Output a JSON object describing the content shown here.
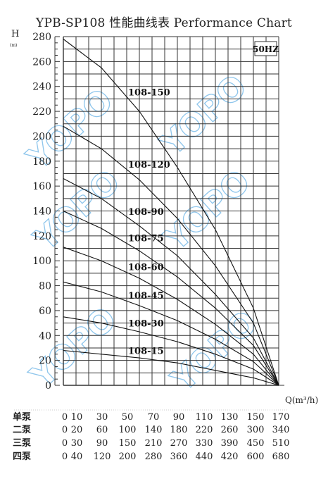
{
  "chart_data": {
    "type": "line",
    "title": "YPB-SP108 性能曲线表 Performance Chart",
    "ylabel": "H",
    "ylabel_unit": "(m)",
    "xlabel": "Q(m³/h)",
    "frequency_badge": "50HZ",
    "ylim": [
      0,
      280
    ],
    "yticks": [
      0,
      20,
      40,
      60,
      80,
      100,
      120,
      140,
      160,
      180,
      200,
      220,
      240,
      260,
      280
    ],
    "xlim": [
      0,
      170
    ],
    "grid": true,
    "watermark": "YOPO",
    "series": [
      {
        "name": "108-150",
        "x": [
          0,
          30,
          60,
          90,
          120,
          150,
          170
        ],
        "y": [
          278,
          255,
          220,
          175,
          125,
          62,
          0
        ]
      },
      {
        "name": "108-120",
        "x": [
          0,
          30,
          60,
          90,
          120,
          150,
          170
        ],
        "y": [
          208,
          190,
          165,
          134,
          96,
          50,
          0
        ]
      },
      {
        "name": "108-90",
        "x": [
          0,
          30,
          60,
          90,
          120,
          150,
          170
        ],
        "y": [
          166,
          150,
          128,
          104,
          73,
          38,
          0
        ]
      },
      {
        "name": "108-75",
        "x": [
          0,
          30,
          60,
          90,
          120,
          150,
          170
        ],
        "y": [
          140,
          126,
          108,
          87,
          62,
          32,
          0
        ]
      },
      {
        "name": "108-60",
        "x": [
          0,
          30,
          60,
          90,
          120,
          150,
          170
        ],
        "y": [
          111,
          100,
          86,
          69,
          49,
          25,
          0
        ]
      },
      {
        "name": "108-45",
        "x": [
          0,
          30,
          60,
          90,
          120,
          150,
          170
        ],
        "y": [
          83,
          75,
          64,
          52,
          37,
          19,
          0
        ]
      },
      {
        "name": "108-30",
        "x": [
          0,
          30,
          60,
          90,
          120,
          150,
          170
        ],
        "y": [
          55,
          50,
          43,
          35,
          25,
          13,
          0
        ]
      },
      {
        "name": "108-15",
        "x": [
          0,
          30,
          60,
          90,
          120,
          150,
          170
        ],
        "y": [
          28,
          25,
          22,
          18,
          12,
          6,
          0
        ]
      }
    ],
    "pump_table": [
      {
        "label": "单泵",
        "values": [
          "0",
          "10",
          "30",
          "50",
          "70",
          "90",
          "110",
          "130",
          "150",
          "170"
        ]
      },
      {
        "label": "二泵",
        "values": [
          "0",
          "20",
          "60",
          "100",
          "140",
          "180",
          "220",
          "260",
          "300",
          "340"
        ]
      },
      {
        "label": "三泵",
        "values": [
          "0",
          "30",
          "90",
          "150",
          "210",
          "270",
          "330",
          "390",
          "450",
          "510"
        ]
      },
      {
        "label": "四泵",
        "values": [
          "0",
          "40",
          "120",
          "200",
          "280",
          "360",
          "440",
          "420",
          "600",
          "680"
        ]
      }
    ]
  }
}
